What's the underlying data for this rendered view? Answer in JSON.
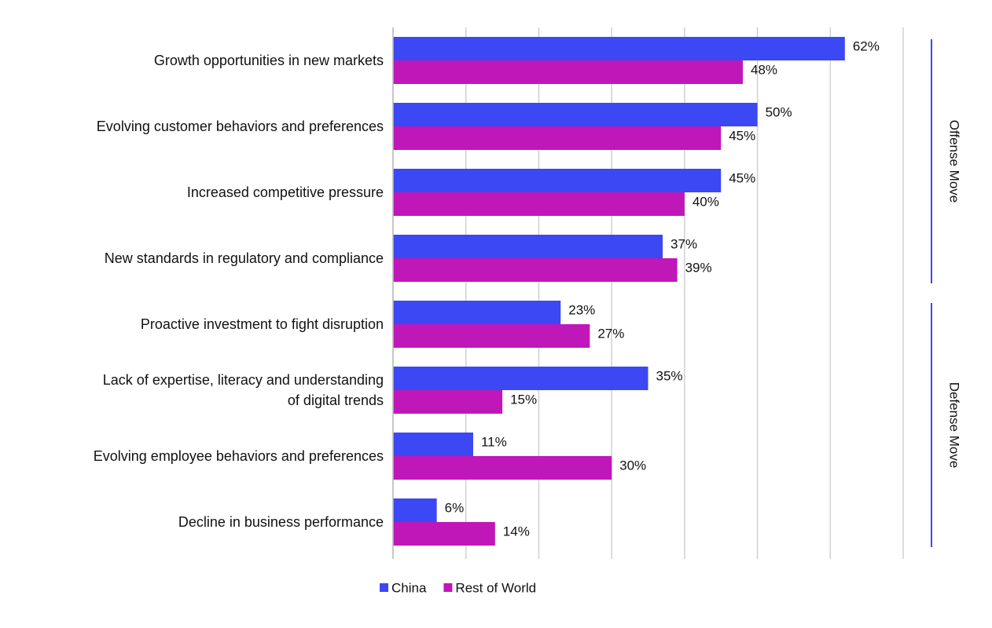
{
  "chart_data": {
    "type": "hbar",
    "categories": [
      "Growth opportunities in new markets",
      "Evolving customer behaviors and preferences",
      "Increased competitive pressure",
      "New standards in regulatory and compliance",
      "Proactive investment to fight disruption",
      "Lack of expertise, literacy and understanding\nof digital trends",
      "Evolving employee behaviors and preferences",
      "Decline in business performance"
    ],
    "series": [
      {
        "name": "China",
        "color": "#3b48f4",
        "values": [
          62,
          50,
          45,
          37,
          23,
          35,
          11,
          6
        ],
        "value_labels": [
          "62%",
          "50%",
          "45%",
          "37%",
          "23%",
          "35%",
          "11%",
          "6%"
        ]
      },
      {
        "name": "Rest of World",
        "color": "#c017b9",
        "values": [
          48,
          45,
          40,
          39,
          27,
          15,
          30,
          14
        ],
        "value_labels": [
          "48%",
          "45%",
          "40%",
          "39%",
          "27%",
          "15%",
          "30%",
          "14%"
        ]
      }
    ],
    "xlim": [
      0,
      70
    ],
    "xticks": [
      0,
      10,
      20,
      30,
      40,
      50,
      60,
      70
    ],
    "grid": true,
    "groups": [
      {
        "name": "Offense Move",
        "categories": [
          "Growth opportunities in new markets",
          "Evolving customer behaviors and preferences",
          "Increased competitive pressure",
          "New standards in regulatory and compliance"
        ]
      },
      {
        "name": "Defense Move",
        "categories": [
          "Proactive investment to fight disruption",
          "Lack of expertise, literacy and understanding\nof digital trends",
          "Evolving employee behaviors and preferences",
          "Decline in business performance"
        ]
      }
    ],
    "group_color": "#3b48f4"
  }
}
